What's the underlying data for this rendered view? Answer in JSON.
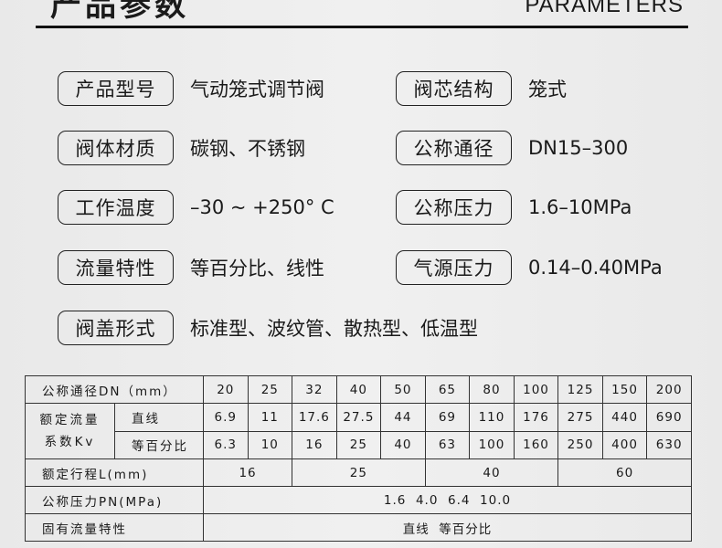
{
  "header": {
    "title_cn": "产品参数",
    "title_en": "PARAMETERS"
  },
  "params": [
    {
      "label": "产品型号",
      "value": "气动笼式调节阀"
    },
    {
      "label": "阀芯结构",
      "value": "笼式"
    },
    {
      "label": "阀体材质",
      "value": "碳钢、不锈钢"
    },
    {
      "label": "公称通径",
      "value": "DN15–300"
    },
    {
      "label": "工作温度",
      "value": "–30 ~ +250°  C"
    },
    {
      "label": "公称压力",
      "value": "1.6–10MPa"
    },
    {
      "label": "流量特性",
      "value": "等百分比、线性"
    },
    {
      "label": "气源压力",
      "value": "0.14–0.40MPa"
    },
    {
      "label": "阀盖形式",
      "value": "标准型、波纹管、散热型、低温型"
    }
  ],
  "table": {
    "dn_label": "公称通径DN（mm）",
    "dn": [
      "20",
      "25",
      "32",
      "40",
      "50",
      "65",
      "80",
      "100",
      "125",
      "150",
      "200"
    ],
    "kv_label": "额定流量系数Kv",
    "linear_label": "直线",
    "linear": [
      "6.9",
      "11",
      "17.6",
      "27.5",
      "44",
      "69",
      "110",
      "176",
      "275",
      "440",
      "690"
    ],
    "eq_label": "等百分比",
    "eq": [
      "6.3",
      "10",
      "16",
      "25",
      "40",
      "63",
      "100",
      "160",
      "250",
      "400",
      "630"
    ],
    "travel_label": "额定行程L(mm)",
    "travel": [
      "16",
      "25",
      "40",
      "60"
    ],
    "pn_label": "公称压力PN(MPa)",
    "pn": "1.6  4.0  6.4  10.0",
    "char_label": "固有流量特性",
    "char": "直线  等百分比"
  }
}
